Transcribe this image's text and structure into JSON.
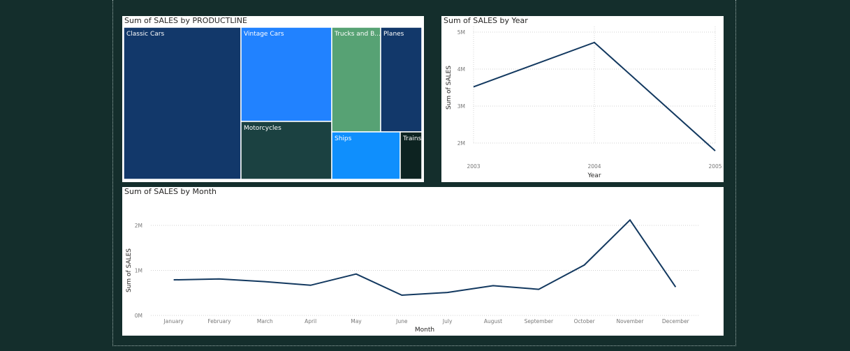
{
  "visuals": {
    "treemap": {
      "title": "Sum of SALES by PRODUCTLINE"
    },
    "year_chart": {
      "title": "Sum of SALES by Year"
    },
    "month_chart": {
      "title": "Sum of SALES by Month"
    }
  },
  "colors": {
    "background": "#142e2c",
    "line": "#12385f",
    "classic_cars": "#12386a",
    "vintage_cars": "#2182ff",
    "trucks": "#57a274",
    "planes": "#12386a",
    "motorcycles": "#1b4141",
    "ships": "#0f8ffd",
    "trains": "#0d2321"
  },
  "chart_data": [
    {
      "type": "treemap",
      "title": "Sum of SALES by PRODUCTLINE",
      "tiles": [
        {
          "label": "Classic Cars",
          "color": "#12386a"
        },
        {
          "label": "Vintage Cars",
          "color": "#2182ff"
        },
        {
          "label": "Motorcycles",
          "color": "#1b4141"
        },
        {
          "label": "Trucks and B...",
          "color": "#57a274"
        },
        {
          "label": "Planes",
          "color": "#12386a"
        },
        {
          "label": "Ships",
          "color": "#0f8ffd"
        },
        {
          "label": "Trains",
          "color": "#0d2321"
        }
      ]
    },
    {
      "type": "line",
      "title": "Sum of SALES by Year",
      "xlabel": "Year",
      "ylabel": "Sum of SALES",
      "x": [
        "2003",
        "2004",
        "2005"
      ],
      "values": [
        3.52,
        4.72,
        1.79
      ],
      "yticks": [
        "2M",
        "3M",
        "4M",
        "5M"
      ],
      "ylim": [
        2,
        5
      ],
      "grid": true
    },
    {
      "type": "line",
      "title": "Sum of SALES by Month",
      "xlabel": "Month",
      "ylabel": "Sum of SALES",
      "x": [
        "January",
        "February",
        "March",
        "April",
        "May",
        "June",
        "July",
        "August",
        "September",
        "October",
        "November",
        "December"
      ],
      "values": [
        0.79,
        0.81,
        0.75,
        0.67,
        0.92,
        0.45,
        0.51,
        0.66,
        0.58,
        1.12,
        2.12,
        0.63
      ],
      "yticks": [
        "0M",
        "1M",
        "2M"
      ],
      "ylim": [
        0,
        2
      ],
      "grid": true
    }
  ]
}
